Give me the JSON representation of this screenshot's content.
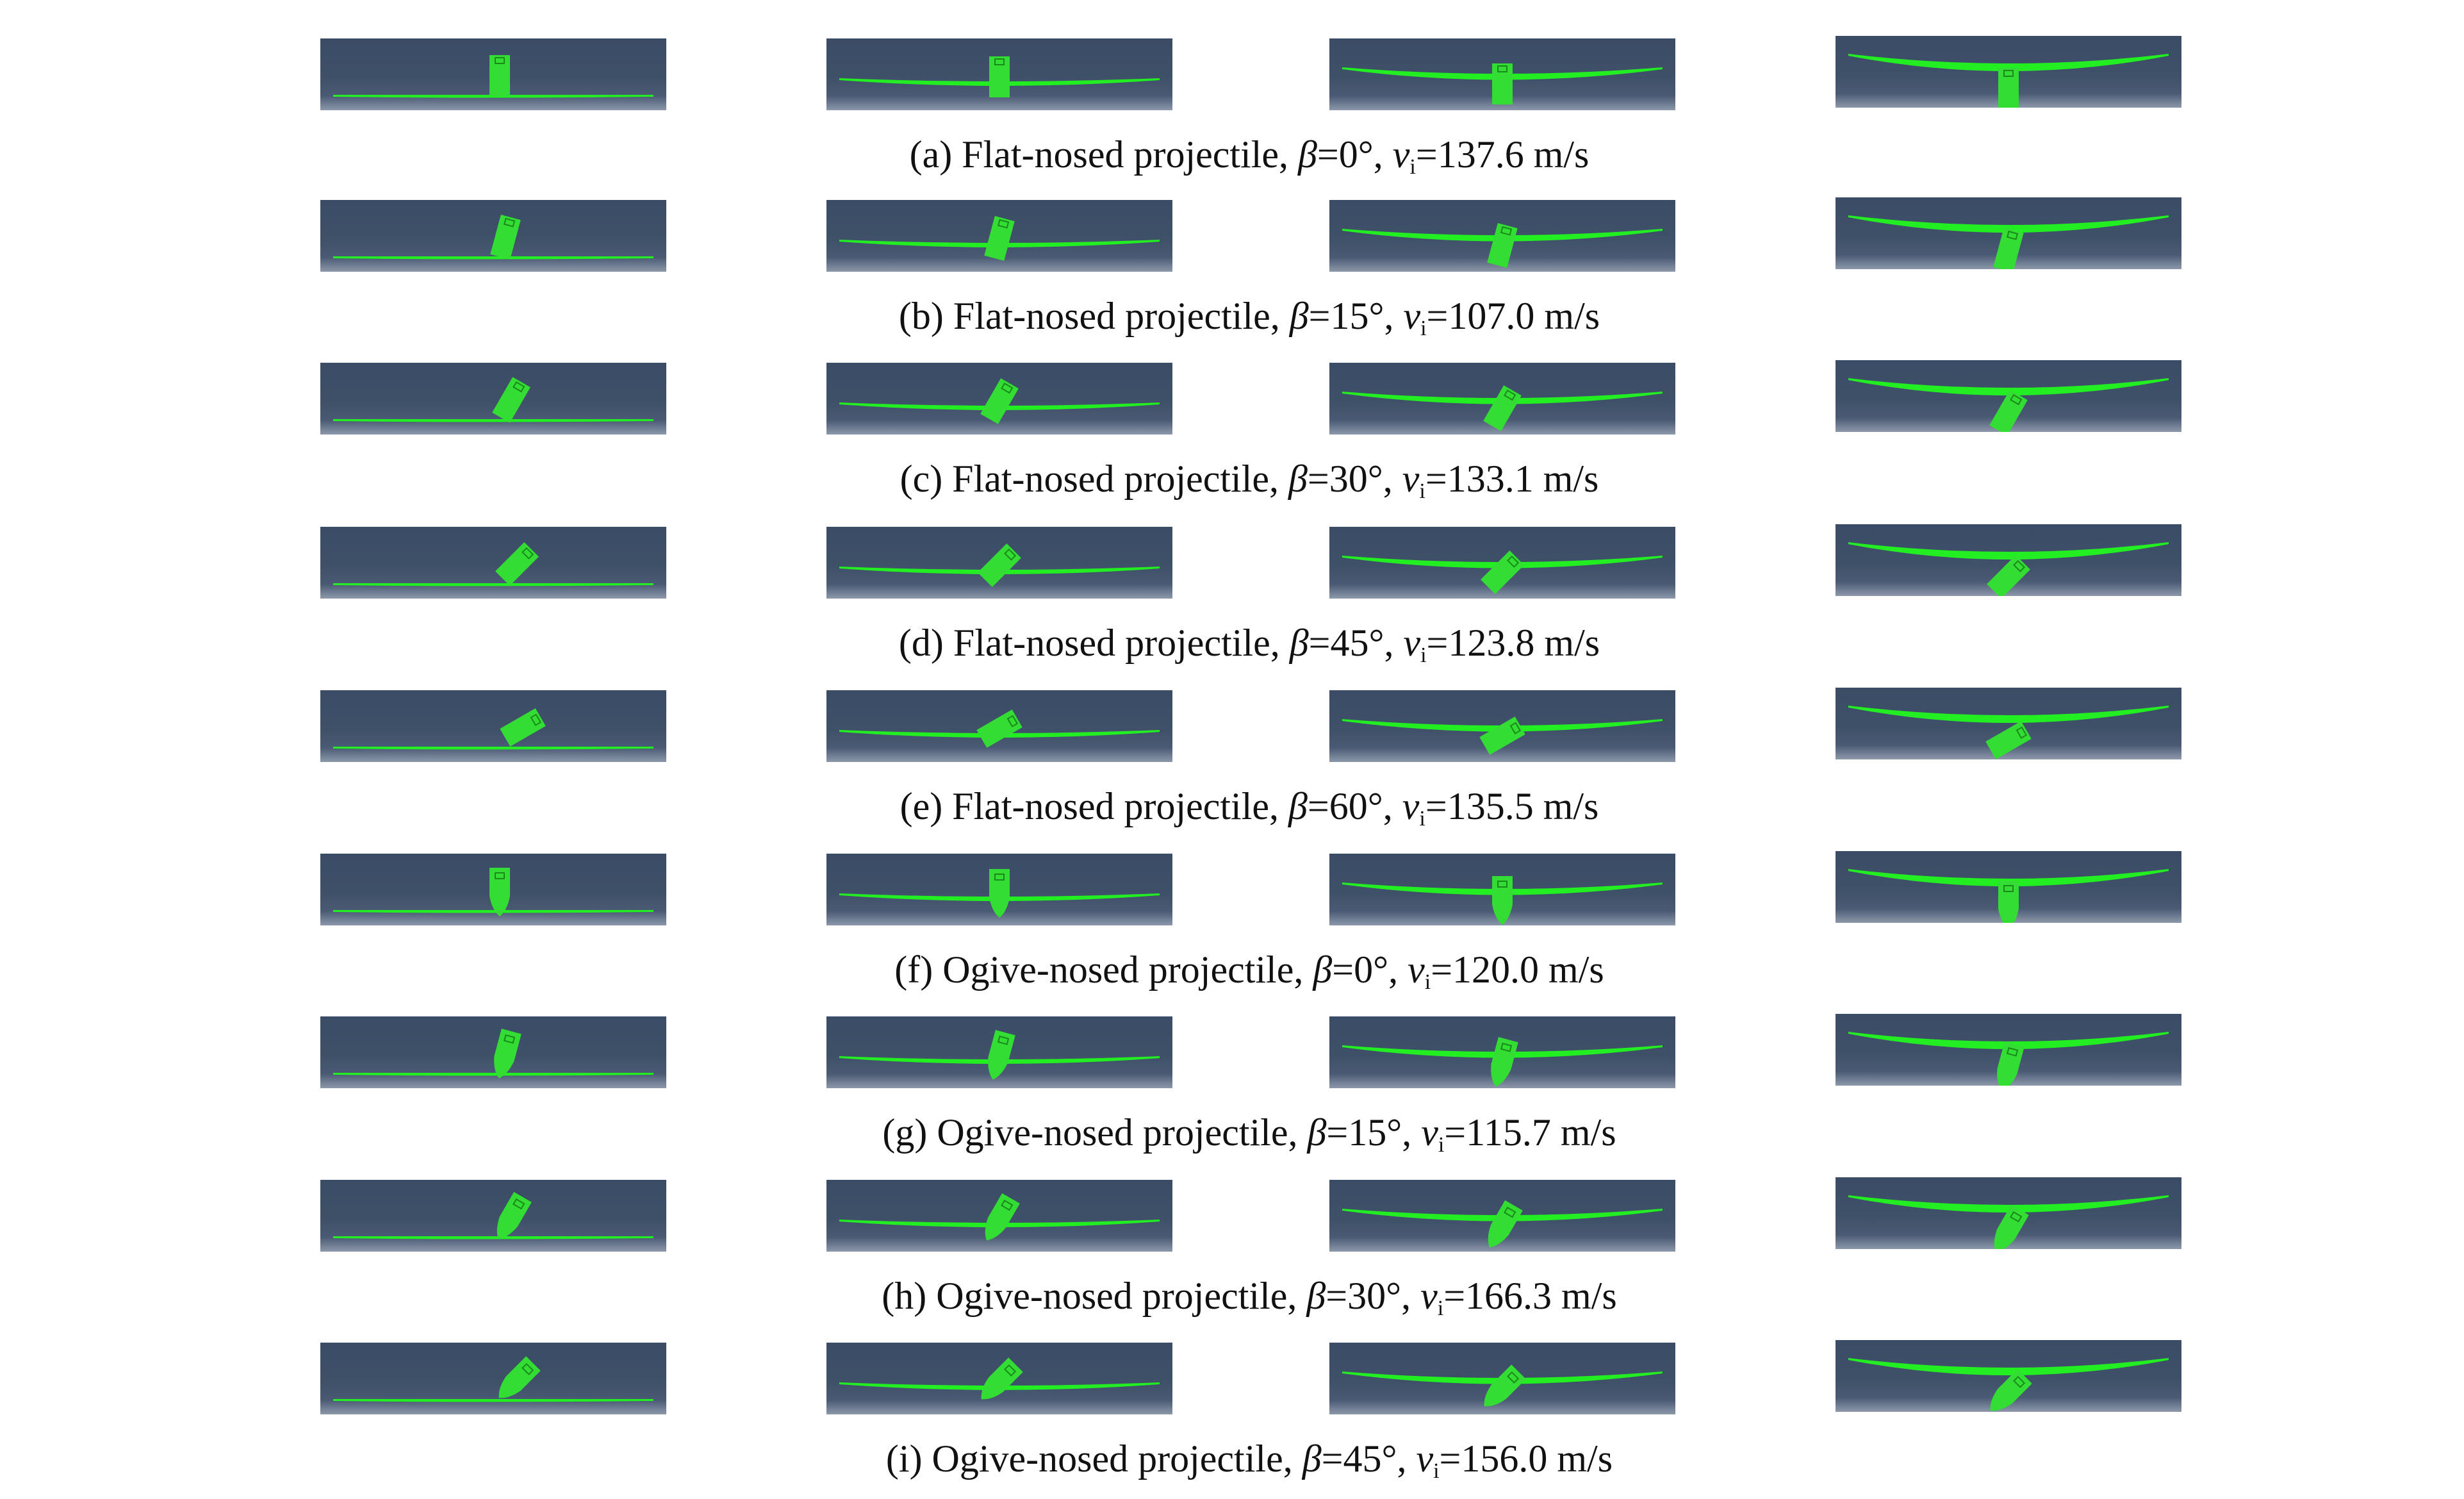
{
  "figure": {
    "rows": [
      {
        "label": "(a) Flat-nosed projectile,",
        "beta": "0",
        "vi": "137.6",
        "nose": "flat"
      },
      {
        "label": "(b) Flat-nosed projectile,",
        "beta": "15",
        "vi": "107.0",
        "nose": "flat"
      },
      {
        "label": "(c) Flat-nosed projectile,",
        "beta": "30",
        "vi": "133.1",
        "nose": "flat"
      },
      {
        "label": "(d) Flat-nosed projectile,",
        "beta": "45",
        "vi": "123.8",
        "nose": "flat"
      },
      {
        "label": "(e) Flat-nosed projectile,",
        "beta": "60",
        "vi": "135.5",
        "nose": "flat"
      },
      {
        "label": "(f) Ogive-nosed projectile,",
        "beta": "0",
        "vi": "120.0",
        "nose": "ogive"
      },
      {
        "label": "(g) Ogive-nosed projectile,",
        "beta": "15",
        "vi": "115.7",
        "nose": "ogive"
      },
      {
        "label": "(h) Ogive-nosed projectile,",
        "beta": "30",
        "vi": "166.3",
        "nose": "ogive"
      },
      {
        "label": "(i) Ogive-nosed projectile,",
        "beta": "45",
        "vi": "156.0",
        "nose": "ogive"
      }
    ],
    "symbols": {
      "beta": "β",
      "equals": "=",
      "degree": "°",
      "comma": ",",
      "v": "v",
      "sub": "i",
      "unit": "m/s"
    },
    "colors": {
      "background": "#3f5069",
      "plate": "#22ee22",
      "projectile": "#33dd33"
    }
  }
}
